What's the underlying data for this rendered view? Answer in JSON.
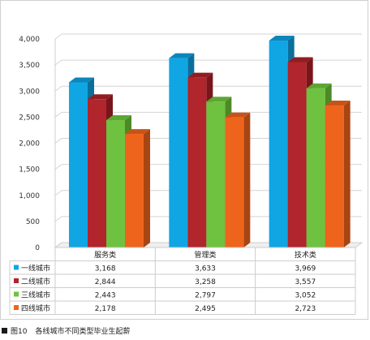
{
  "chart_data": {
    "type": "bar",
    "categories": [
      "服务类",
      "管理类",
      "技术类"
    ],
    "series": [
      {
        "name": "一线城市",
        "values": [
          3168,
          3633,
          3969
        ]
      },
      {
        "name": "二线城市",
        "values": [
          2844,
          3258,
          3557
        ]
      },
      {
        "name": "三线城市",
        "values": [
          2443,
          2797,
          3052
        ]
      },
      {
        "name": "四线城市",
        "values": [
          2178,
          2495,
          2723
        ]
      }
    ],
    "table_values": [
      [
        "3,168",
        "3,633",
        "3,969"
      ],
      [
        "2,844",
        "3,258",
        "3,557"
      ],
      [
        "2,443",
        "2,797",
        "3,052"
      ],
      [
        "2,178",
        "2,495",
        "2,723"
      ]
    ],
    "yticks": [
      "0",
      "500",
      "1,000",
      "1,500",
      "2,000",
      "2,500",
      "3,000",
      "3,500",
      "4,000"
    ],
    "ylim": [
      0,
      4000
    ],
    "grid": true,
    "legend": "data-table-left",
    "colors": {
      "front": [
        "#10a6e3",
        "#b1252c",
        "#6fc140",
        "#ee641c"
      ],
      "side": [
        "#0b6f9c",
        "#7a161b",
        "#4c8a28",
        "#a94512"
      ],
      "top": [
        "#0c86bb",
        "#901d22",
        "#5ca733",
        "#c95316"
      ]
    }
  },
  "caption": {
    "figure_number": "图10",
    "title": "各线城市不同类型毕业生起薪"
  }
}
